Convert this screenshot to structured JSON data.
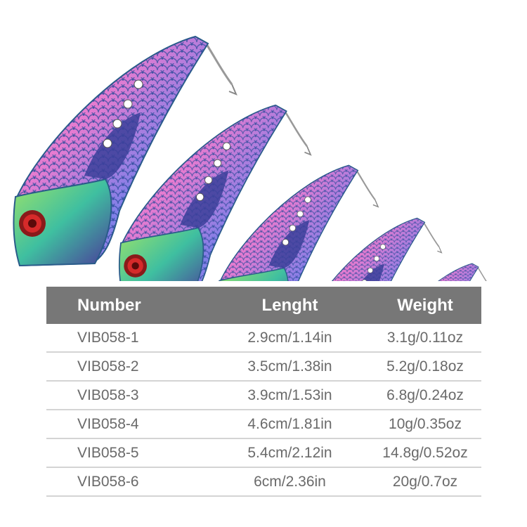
{
  "product": {
    "lure_count": 6,
    "colors": {
      "scale_pink": "#e77bd0",
      "scale_blue": "#5aa8e8",
      "head_green": "#58c98a",
      "eye_red": "#d62a2a",
      "belly_purple": "#4a3a9a"
    },
    "table_header_color": "#777777"
  },
  "table": {
    "headers": [
      "Number",
      "Lenght",
      "Weight"
    ],
    "rows": [
      [
        "VIB058-1",
        "2.9cm/1.14in",
        "3.1g/0.11oz"
      ],
      [
        "VIB058-2",
        "3.5cm/1.38in",
        "5.2g/0.18oz"
      ],
      [
        "VIB058-3",
        "3.9cm/1.53in",
        "6.8g/0.24oz"
      ],
      [
        "VIB058-4",
        "4.6cm/1.81in",
        "10g/0.35oz"
      ],
      [
        "VIB058-5",
        "5.4cm/2.12in",
        "14.8g/0.52oz"
      ],
      [
        "VIB058-6",
        "6cm/2.36in",
        "20g/0.7oz"
      ]
    ]
  }
}
